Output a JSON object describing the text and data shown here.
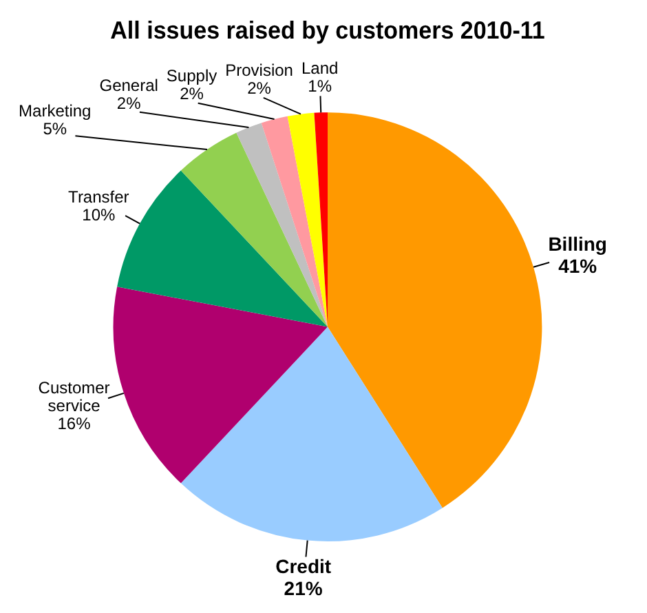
{
  "chart_data": {
    "type": "pie",
    "title": "All issues raised by customers 2010-11",
    "categories": [
      "Billing",
      "Credit",
      "Customer service",
      "Transfer",
      "Marketing",
      "General",
      "Supply",
      "Provision",
      "Land"
    ],
    "values": [
      41,
      21,
      16,
      10,
      5,
      2,
      2,
      2,
      1
    ],
    "colors": [
      "#ff9900",
      "#99ccff",
      "#b0006e",
      "#009966",
      "#92d050",
      "#c0c0c0",
      "#ff99a0",
      "#ffff00",
      "#ff0000"
    ],
    "value_labels": [
      "41%",
      "21%",
      "16%",
      "10%",
      "5%",
      "2%",
      "2%",
      "2%",
      "1%"
    ],
    "legend": false
  }
}
